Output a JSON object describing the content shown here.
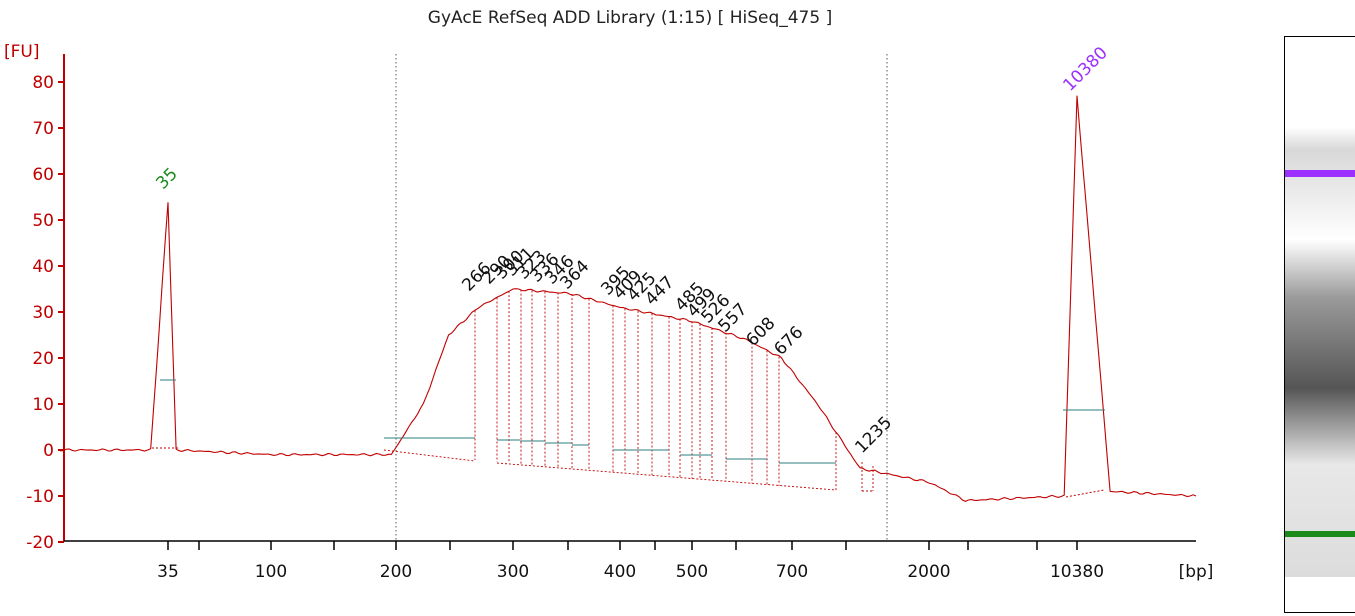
{
  "title": "GyAcE RefSeq ADD Library (1:15)  [ HiSeq_475 ]",
  "colors": {
    "trace": "#c00000",
    "axis": "#c00000",
    "baseline": "#2e7d7d",
    "marker_low": "#1a8a1a",
    "marker_high": "#9b30ff"
  },
  "chart_data": {
    "type": "line",
    "title": "GyAcE RefSeq ADD Library (1:15)  [ HiSeq_475 ]",
    "ylabel": "[FU]",
    "xlabel": "[bp]",
    "ylim": [
      -20,
      85
    ],
    "yticks": [
      80,
      70,
      60,
      50,
      40,
      30,
      20,
      10,
      0,
      -10,
      -20
    ],
    "xticks": [
      "35",
      "100",
      "200",
      "300",
      "400",
      "500",
      "700",
      "2000",
      "10380"
    ],
    "x_axis": "fragment size (bp), non-linear ladder scale",
    "grid": false,
    "marker_peaks": [
      {
        "label": "35",
        "bp": 35,
        "fu": 54
      },
      {
        "label": "10380",
        "bp": 10380,
        "fu": 77
      }
    ],
    "peak_labels": [
      "266",
      "290",
      "300",
      "311",
      "323",
      "336",
      "346",
      "364",
      "395",
      "409",
      "425",
      "447",
      "485",
      "499",
      "526",
      "557",
      "608",
      "676",
      "1235"
    ],
    "trace_points": [
      {
        "bp": 20,
        "fu": 0
      },
      {
        "bp": 32,
        "fu": 0
      },
      {
        "bp": 35,
        "fu": 54
      },
      {
        "bp": 38,
        "fu": 0
      },
      {
        "bp": 100,
        "fu": -1
      },
      {
        "bp": 195,
        "fu": -1
      },
      {
        "bp": 220,
        "fu": 10
      },
      {
        "bp": 240,
        "fu": 25
      },
      {
        "bp": 266,
        "fu": 31
      },
      {
        "bp": 300,
        "fu": 35
      },
      {
        "bp": 350,
        "fu": 34
      },
      {
        "bp": 400,
        "fu": 31
      },
      {
        "bp": 500,
        "fu": 28
      },
      {
        "bp": 600,
        "fu": 24
      },
      {
        "bp": 676,
        "fu": 20
      },
      {
        "bp": 800,
        "fu": 10
      },
      {
        "bp": 1000,
        "fu": -4
      },
      {
        "bp": 2000,
        "fu": -7
      },
      {
        "bp": 3000,
        "fu": -11
      },
      {
        "bp": 9000,
        "fu": -10
      },
      {
        "bp": 10380,
        "fu": 77
      },
      {
        "bp": 11500,
        "fu": -9
      },
      {
        "bp": 15000,
        "fu": -10
      }
    ]
  }
}
